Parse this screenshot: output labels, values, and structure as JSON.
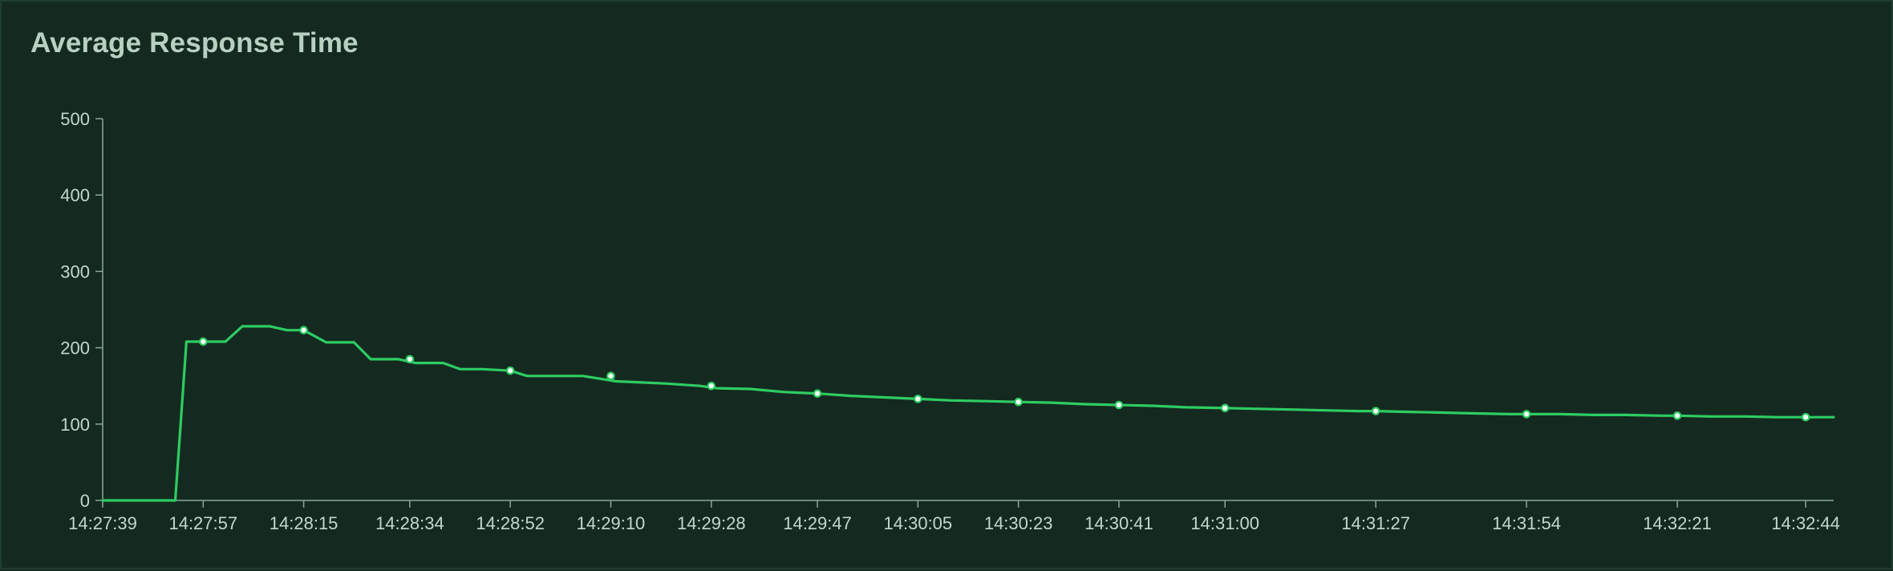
{
  "panel": {
    "title": "Average Response Time"
  },
  "colors": {
    "background": "#142a20",
    "line": "#2ecc63",
    "axis": "#8ea79a",
    "text": "#c5d6cc",
    "marker_fill": "#ffffff"
  },
  "chart_data": {
    "type": "line",
    "title": "Average Response Time",
    "xlabel": "",
    "ylabel": "",
    "ylim": [
      0,
      500
    ],
    "yticks": [
      0,
      100,
      200,
      300,
      400,
      500
    ],
    "xlim": [
      "14:27:39",
      "14:32:49"
    ],
    "xticks": [
      "14:27:39",
      "14:27:57",
      "14:28:15",
      "14:28:34",
      "14:28:52",
      "14:29:10",
      "14:29:28",
      "14:29:47",
      "14:30:05",
      "14:30:23",
      "14:30:41",
      "14:31:00",
      "14:31:27",
      "14:31:54",
      "14:32:21",
      "14:32:44"
    ],
    "grid": false,
    "legend": "none",
    "series": [
      {
        "x": [
          "14:27:39",
          "14:27:47",
          "14:27:52",
          "14:27:54",
          "14:27:58",
          "14:28:01",
          "14:28:04",
          "14:28:06",
          "14:28:09",
          "14:28:12",
          "14:28:15",
          "14:28:19",
          "14:28:24",
          "14:28:27",
          "14:28:32",
          "14:28:35",
          "14:28:40",
          "14:28:43",
          "14:28:47",
          "14:28:52",
          "14:28:55",
          "14:28:59",
          "14:29:05",
          "14:29:11",
          "14:29:14",
          "14:29:20",
          "14:29:26",
          "14:29:29",
          "14:29:35",
          "14:29:41",
          "14:29:47",
          "14:29:53",
          "14:29:59",
          "14:30:05",
          "14:30:11",
          "14:30:17",
          "14:30:23",
          "14:30:29",
          "14:30:35",
          "14:30:41",
          "14:30:47",
          "14:30:53",
          "14:31:00",
          "14:31:06",
          "14:31:12",
          "14:31:18",
          "14:31:24",
          "14:31:27",
          "14:31:33",
          "14:31:39",
          "14:31:45",
          "14:31:51",
          "14:31:54",
          "14:32:00",
          "14:32:06",
          "14:32:12",
          "14:32:18",
          "14:32:21",
          "14:32:27",
          "14:32:33",
          "14:32:39",
          "14:32:45",
          "14:32:49"
        ],
        "values": [
          0,
          0,
          0,
          208,
          208,
          208,
          228,
          228,
          228,
          223,
          223,
          207,
          207,
          185,
          185,
          180,
          180,
          172,
          172,
          170,
          163,
          163,
          163,
          156,
          155,
          153,
          150,
          147,
          146,
          142,
          140,
          137,
          135,
          133,
          131,
          130,
          129,
          128,
          126,
          125,
          124,
          122,
          121,
          120,
          119,
          118,
          117,
          117,
          116,
          115,
          114,
          113,
          113,
          113,
          112,
          112,
          111,
          111,
          110,
          110,
          109,
          109,
          109
        ]
      }
    ],
    "markers_at": [
      "14:27:57",
      "14:28:15",
      "14:28:34",
      "14:28:52",
      "14:29:10",
      "14:29:28",
      "14:29:47",
      "14:30:05",
      "14:30:23",
      "14:30:41",
      "14:31:00",
      "14:31:27",
      "14:31:54",
      "14:32:21",
      "14:32:44"
    ]
  }
}
